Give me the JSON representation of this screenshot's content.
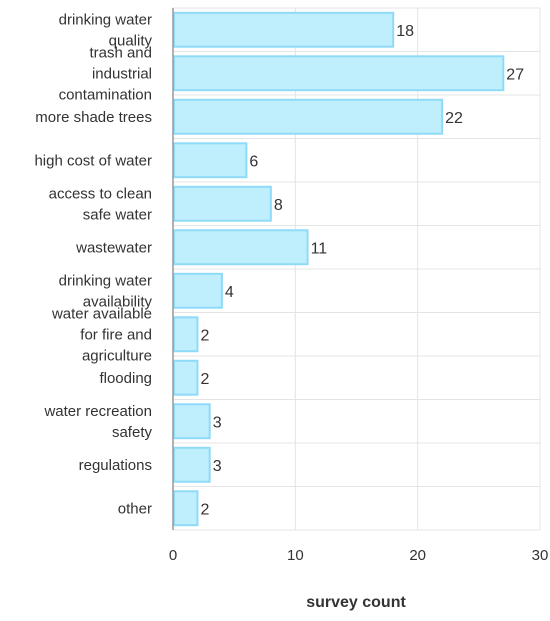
{
  "chart_data": {
    "type": "bar",
    "orientation": "horizontal",
    "categories": [
      [
        "drinking water",
        "quality"
      ],
      [
        "trash and",
        "industrial",
        "contamination"
      ],
      [
        "more shade trees"
      ],
      [
        "high cost of water"
      ],
      [
        "access to clean",
        "safe water"
      ],
      [
        "wastewater"
      ],
      [
        "drinking water",
        "availability"
      ],
      [
        "water available",
        "for fire and",
        "agriculture"
      ],
      [
        "flooding"
      ],
      [
        "water recreation",
        "safety"
      ],
      [
        "regulations"
      ],
      [
        "other"
      ]
    ],
    "values": [
      18,
      27,
      22,
      6,
      8,
      11,
      4,
      2,
      2,
      3,
      3,
      2
    ],
    "xlim": [
      0,
      30
    ],
    "xticks": [
      0,
      10,
      20,
      30
    ],
    "xlabel": "survey count",
    "ylabel": "",
    "title": "",
    "grid": true,
    "data_labels": true,
    "bar_fill": "#bfeefc",
    "bar_stroke": "#8fdbf7",
    "grid_color": "#e4e4e4",
    "text_color": "#333333"
  }
}
